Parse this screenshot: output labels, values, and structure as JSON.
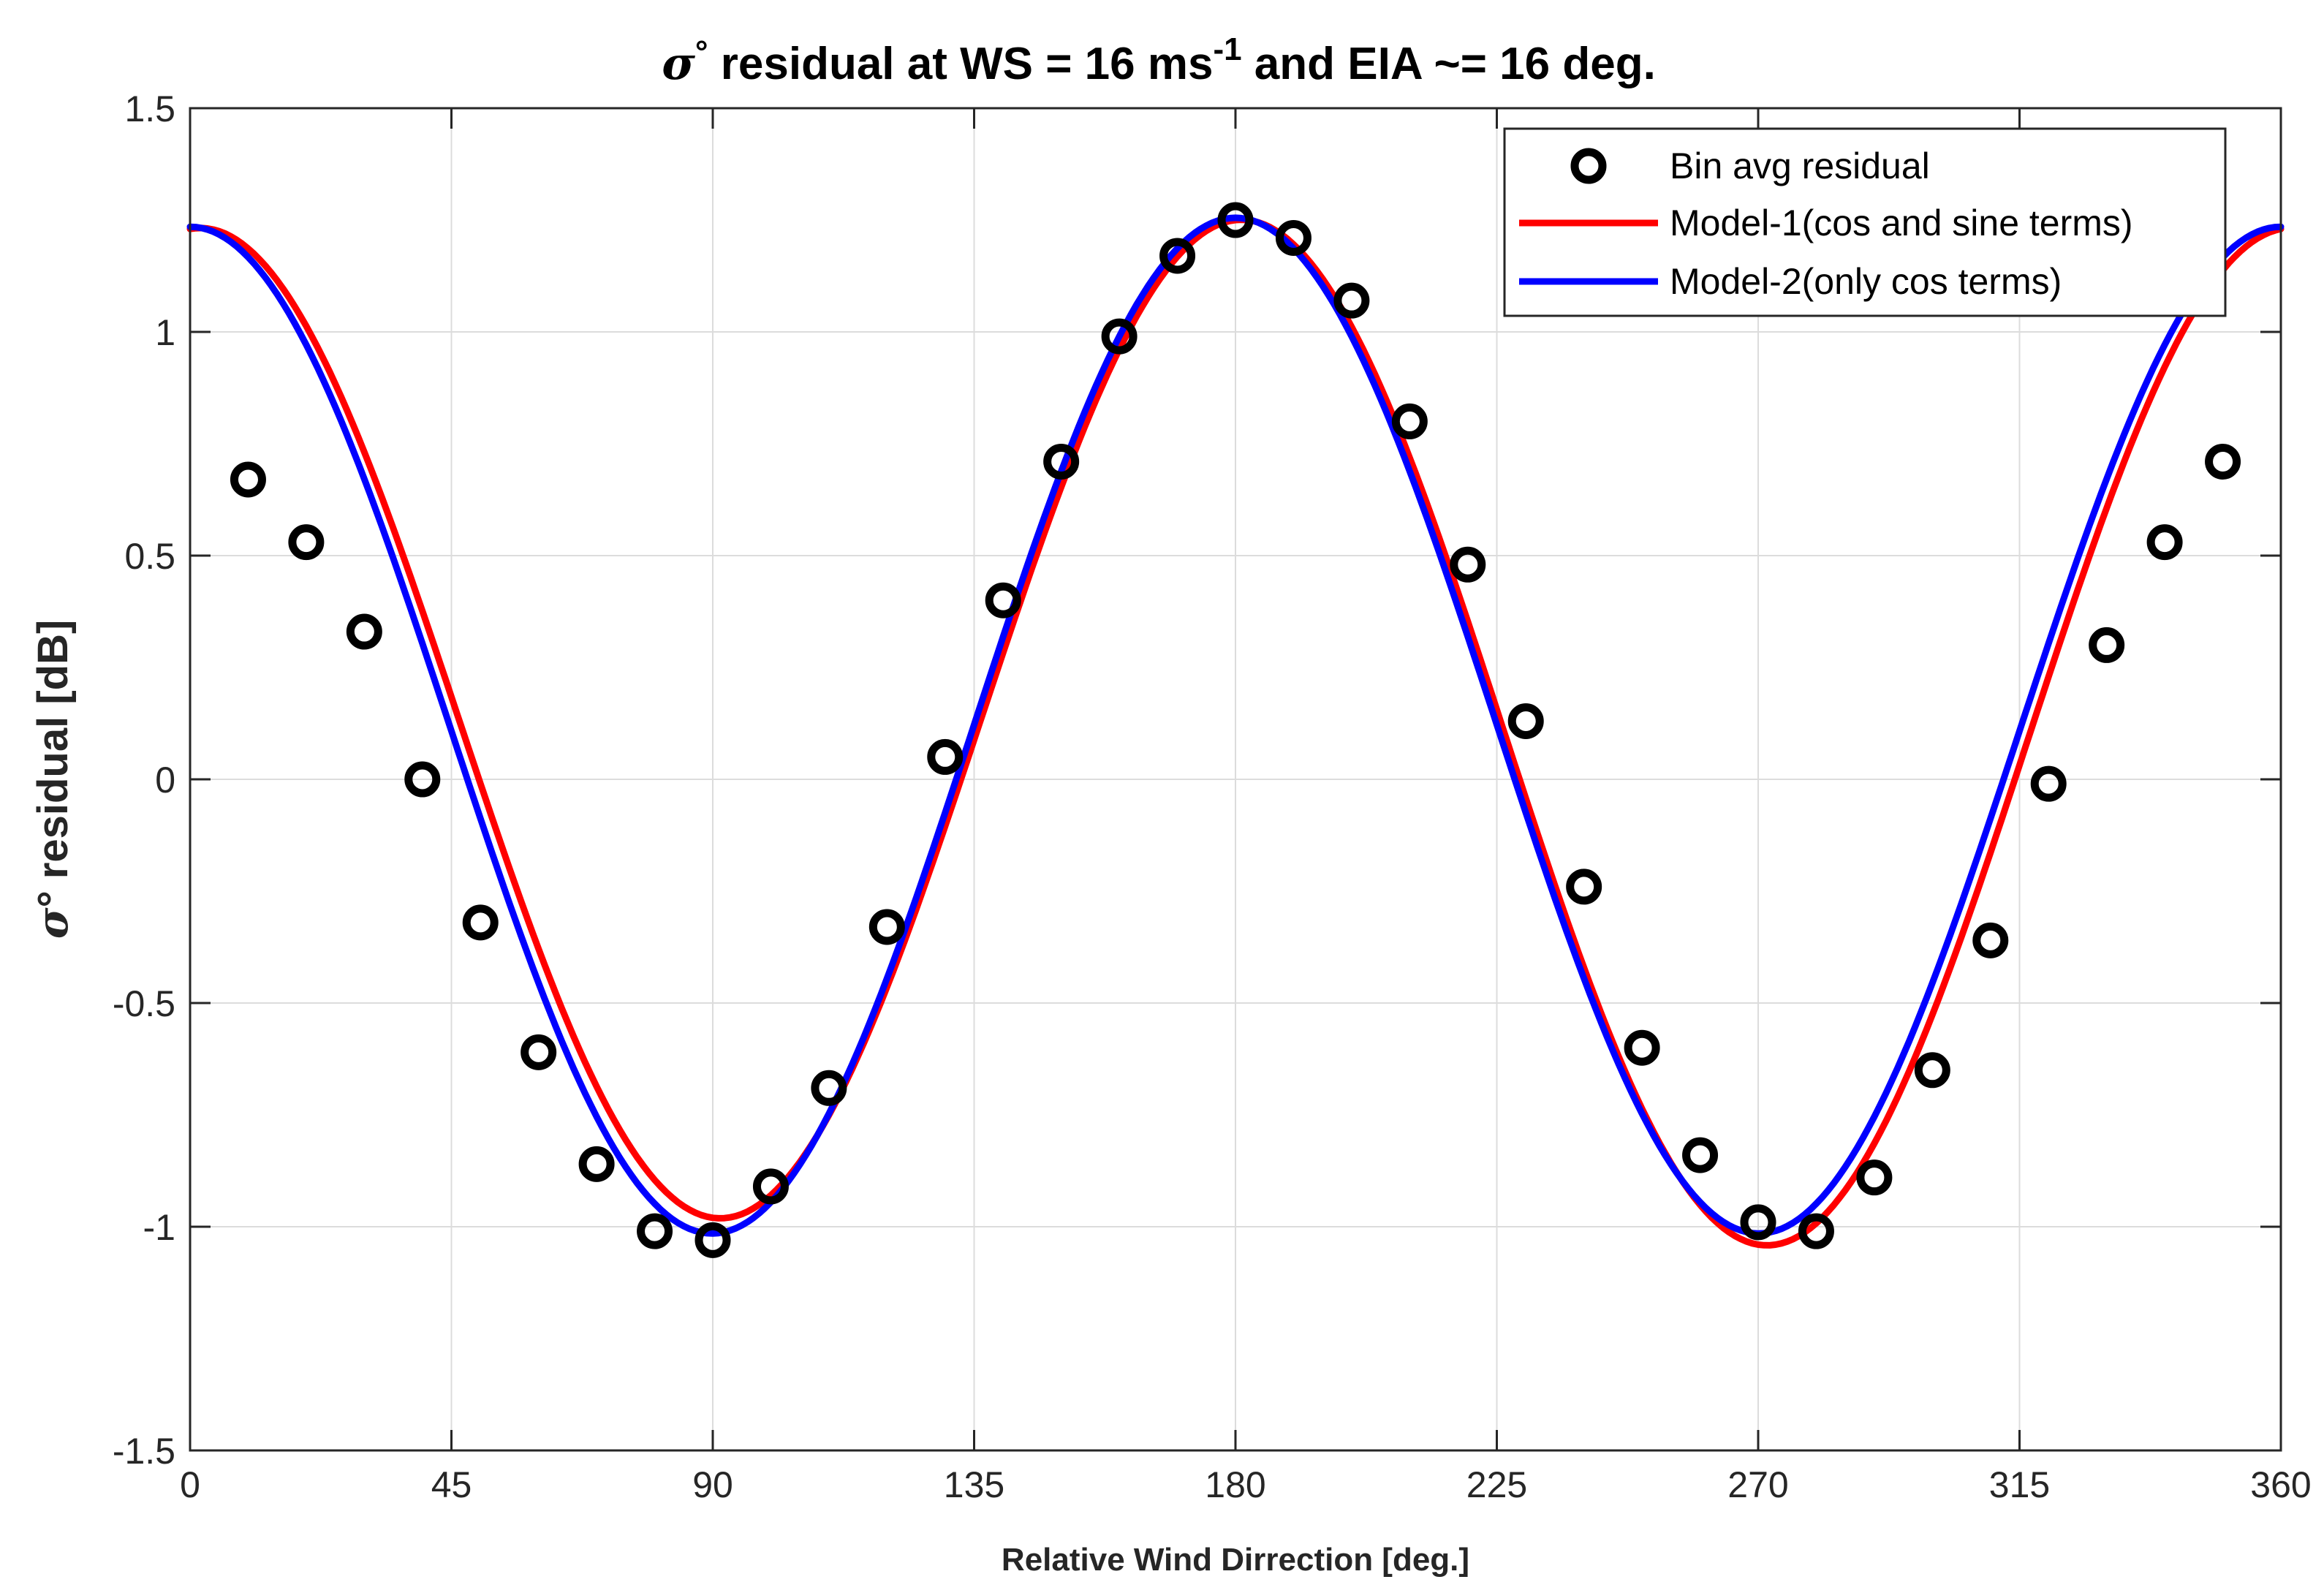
{
  "chart_data": {
    "type": "line",
    "title": {
      "symbol": "σ",
      "degree": "°",
      "main": " residual at WS = 16 ms",
      "superscript": "-1",
      "rest": " and EIA ~= 16 deg."
    },
    "xlabel": "Relative Wind Dirrection [deg.]",
    "ylabel": {
      "symbol": "σ",
      "rest": "° residual [dB]"
    },
    "xlim": [
      0,
      360
    ],
    "ylim": [
      -1.5,
      1.5
    ],
    "xticks": [
      0,
      45,
      90,
      135,
      180,
      225,
      270,
      315,
      360
    ],
    "xtick_labels": [
      "0",
      "45",
      "90",
      "135",
      "180",
      "225",
      "270",
      "315",
      "360"
    ],
    "yticks": [
      -1.5,
      -1,
      -0.5,
      0,
      0.5,
      1,
      1.5
    ],
    "ytick_labels": [
      "-1.5",
      "-1",
      "-0.5",
      "0",
      "0.5",
      "1",
      "1.5"
    ],
    "grid": true,
    "legend_position": "top-right",
    "series": [
      {
        "name": "Bin avg residual",
        "kind": "scatter",
        "marker": "circle",
        "color": "#000000",
        "x": [
          10,
          20,
          30,
          40,
          50,
          60,
          70,
          80,
          90,
          100,
          110,
          120,
          130,
          140,
          150,
          160,
          170,
          180,
          190,
          200,
          210,
          220,
          230,
          240,
          250,
          260,
          270,
          280,
          290,
          300,
          310,
          320,
          330,
          340,
          350
        ],
        "y": [
          0.67,
          0.53,
          0.33,
          0.0,
          -0.32,
          -0.61,
          -0.86,
          -1.01,
          -1.03,
          -0.91,
          -0.69,
          -0.33,
          0.05,
          0.4,
          0.71,
          0.99,
          1.17,
          1.25,
          1.21,
          1.07,
          0.8,
          0.48,
          0.13,
          -0.24,
          -0.6,
          -0.84,
          -0.99,
          -1.01,
          -0.89,
          -0.65,
          -0.36,
          -0.01,
          0.3,
          0.53,
          0.71
        ]
      },
      {
        "name": "Model-1(cos and sine terms)",
        "kind": "line",
        "color": "#ff0000",
        "model": {
          "a0": 0.115,
          "a1": -0.01,
          "a2": 1.125,
          "b1": 0.03,
          "b2": 0.055
        }
      },
      {
        "name": "Model-2(only cos terms)",
        "kind": "line",
        "color": "#0000ff",
        "model": {
          "a0": 0.115,
          "a1": -0.01,
          "a2": 1.13,
          "b1": 0.0,
          "b2": 0.0
        }
      }
    ]
  }
}
